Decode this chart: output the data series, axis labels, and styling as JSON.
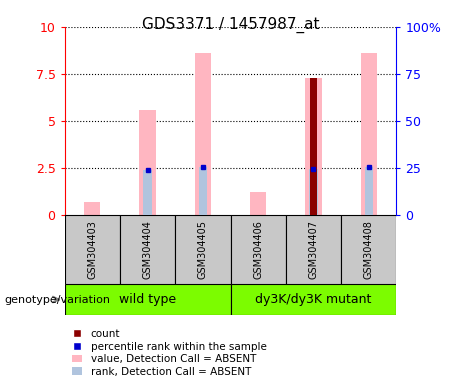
{
  "title": "GDS3371 / 1457987_at",
  "samples": [
    "GSM304403",
    "GSM304404",
    "GSM304405",
    "GSM304406",
    "GSM304407",
    "GSM304408"
  ],
  "ylim_left": [
    0,
    10
  ],
  "ylim_right": [
    0,
    100
  ],
  "yticks_left": [
    0,
    2.5,
    5,
    7.5,
    10
  ],
  "yticks_right": [
    0,
    25,
    50,
    75,
    100
  ],
  "ytick_labels_left": [
    "0",
    "2.5",
    "5",
    "7.5",
    "10"
  ],
  "ytick_labels_right": [
    "0",
    "25",
    "50",
    "75",
    "100%"
  ],
  "value_bars": [
    0.7,
    5.6,
    8.6,
    1.2,
    7.3,
    8.6
  ],
  "rank_bars": [
    0.0,
    2.4,
    2.55,
    0.0,
    2.45,
    2.55
  ],
  "count_bars": [
    0,
    0,
    0,
    0,
    7.3,
    0
  ],
  "blue_markers": [
    false,
    true,
    true,
    false,
    true,
    true
  ],
  "blue_vals": [
    0,
    2.4,
    2.55,
    0,
    2.45,
    2.55
  ],
  "value_color": "#FFB6C1",
  "rank_color": "#B0C4DE",
  "count_color": "#8B0000",
  "blue_color": "#0000CD",
  "bar_width": 0.3,
  "rank_bar_width": 0.15,
  "count_bar_width": 0.12,
  "group_label_left": "wild type",
  "group_label_right": "dy3K/dy3K mutant",
  "group_color": "#7CFC00",
  "sample_box_color": "#C8C8C8",
  "genotype_label": "genotype/variation",
  "legend_labels": [
    "count",
    "percentile rank within the sample",
    "value, Detection Call = ABSENT",
    "rank, Detection Call = ABSENT"
  ],
  "legend_colors": [
    "#8B0000",
    "#0000CD",
    "#FFB6C1",
    "#B0C4DE"
  ],
  "title_fontsize": 11,
  "tick_fontsize": 9,
  "sample_fontsize": 7,
  "group_fontsize": 9,
  "legend_fontsize": 7.5
}
